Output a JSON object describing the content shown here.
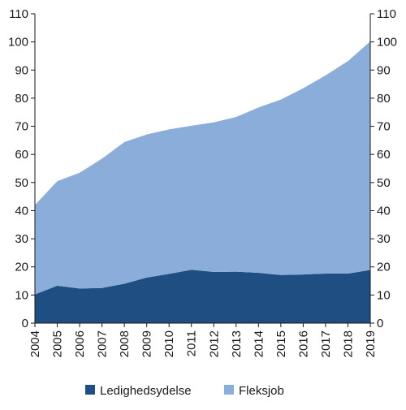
{
  "chart_data": {
    "type": "area",
    "stacked": true,
    "x": [
      "2004",
      "2005",
      "2006",
      "2007",
      "2008",
      "2009",
      "2010",
      "2011",
      "2012",
      "2013",
      "2014",
      "2015",
      "2016",
      "2017",
      "2018",
      "2019"
    ],
    "series": [
      {
        "name": "Ledighedsydelse",
        "color": "#1f4e82",
        "values": [
          10.2,
          13.3,
          12.3,
          12.5,
          14.0,
          16.2,
          17.5,
          19.0,
          18.2,
          18.3,
          17.9,
          17.1,
          17.3,
          17.6,
          17.6,
          18.9
        ]
      },
      {
        "name": "Fleksjob",
        "color": "#8badd9",
        "values": [
          31.8,
          37.2,
          41.2,
          46.0,
          50.4,
          50.9,
          51.4,
          51.2,
          53.2,
          55.0,
          58.8,
          62.4,
          66.2,
          70.5,
          75.6,
          81.3
        ]
      }
    ],
    "ylim": [
      0,
      110
    ],
    "yticks": [
      0,
      10,
      20,
      30,
      40,
      50,
      60,
      70,
      80,
      90,
      100,
      110
    ],
    "ytick_labels": [
      "0",
      "10",
      "20",
      "30",
      "40",
      "50",
      "60",
      "70",
      "80",
      "90",
      "100",
      "110"
    ],
    "y_axis_both_sides": true,
    "grid": false,
    "legend_position": "bottom",
    "title": "",
    "xlabel": "",
    "ylabel": ""
  }
}
